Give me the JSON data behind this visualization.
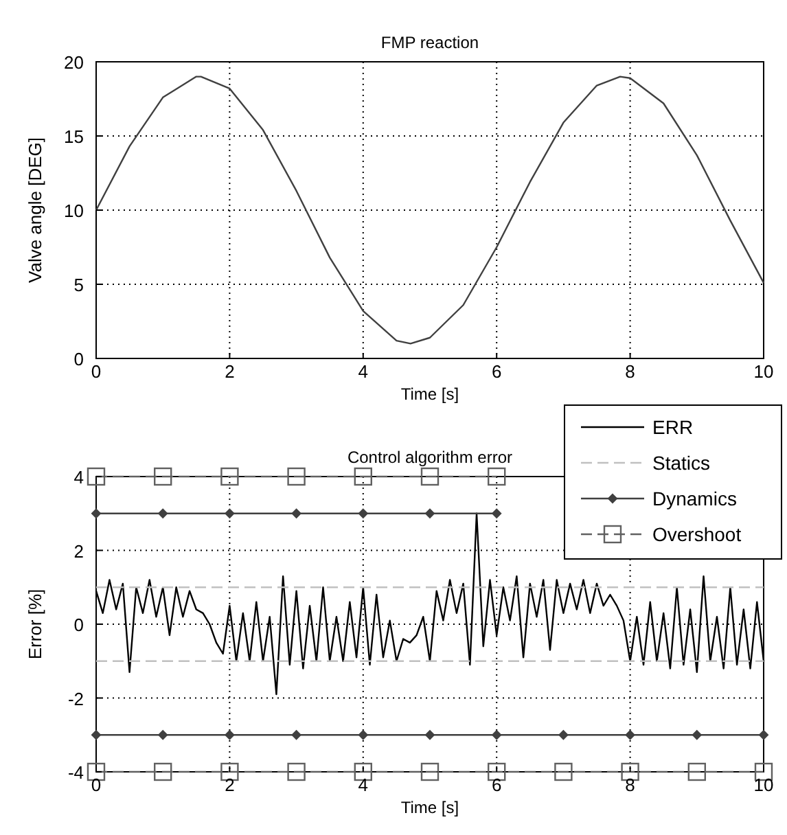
{
  "chart_data": [
    {
      "type": "line",
      "title": "FMP reaction",
      "xlabel": "Time [s]",
      "ylabel": "Valve angle [DEG]",
      "xlim": [
        0,
        10
      ],
      "ylim": [
        0,
        20
      ],
      "xticks": [
        0,
        2,
        4,
        6,
        8,
        10
      ],
      "yticks": [
        0,
        5,
        10,
        15,
        20
      ],
      "grid": true,
      "legend": false,
      "series": [
        {
          "color": "#404040",
          "x": [
            0,
            0.5,
            1,
            1.5,
            1.57,
            2,
            2.5,
            3,
            3.5,
            4,
            4.5,
            4.71,
            5,
            5.5,
            6,
            6.5,
            7,
            7.5,
            7.85,
            8,
            8.5,
            9,
            9.5,
            10
          ],
          "values": [
            10,
            14.3,
            17.6,
            19,
            19,
            18.2,
            15.4,
            11.3,
            6.8,
            3.2,
            1.2,
            1,
            1.4,
            3.6,
            7.5,
            11.9,
            15.9,
            18.4,
            19,
            18.9,
            17.2,
            13.7,
            9.3,
            5.1
          ]
        }
      ]
    },
    {
      "type": "line",
      "title": "Control algorithm error",
      "xlabel": "Time [s]",
      "ylabel": "Error [%]",
      "xlim": [
        0,
        10
      ],
      "ylim": [
        -4,
        4
      ],
      "xticks": [
        0,
        2,
        4,
        6,
        8,
        10
      ],
      "yticks": [
        -4,
        -2,
        0,
        2,
        4
      ],
      "grid": true,
      "legend": "top right",
      "series": [
        {
          "name": "ERR",
          "color": "#000000",
          "line_style": "solid",
          "marker": "none",
          "x": [
            0,
            0.1,
            0.2,
            0.3,
            0.4,
            0.5,
            0.6,
            0.7,
            0.8,
            0.9,
            1,
            1.1,
            1.2,
            1.3,
            1.4,
            1.5,
            1.6,
            1.7,
            1.8,
            1.9,
            2,
            2.1,
            2.2,
            2.3,
            2.4,
            2.5,
            2.6,
            2.7,
            2.8,
            2.9,
            3,
            3.1,
            3.2,
            3.3,
            3.4,
            3.5,
            3.6,
            3.7,
            3.8,
            3.9,
            4,
            4.1,
            4.2,
            4.3,
            4.4,
            4.5,
            4.6,
            4.7,
            4.8,
            4.9,
            5,
            5.1,
            5.2,
            5.3,
            5.4,
            5.5,
            5.6,
            5.7,
            5.8,
            5.9,
            6,
            6.1,
            6.2,
            6.3,
            6.4,
            6.5,
            6.6,
            6.7,
            6.8,
            6.9,
            7,
            7.1,
            7.2,
            7.3,
            7.4,
            7.5,
            7.6,
            7.7,
            7.8,
            7.9,
            8,
            8.1,
            8.2,
            8.3,
            8.4,
            8.5,
            8.6,
            8.7,
            8.8,
            8.9,
            9,
            9.1,
            9.2,
            9.3,
            9.4,
            9.5,
            9.6,
            9.7,
            9.8,
            9.9,
            10
          ],
          "values": [
            0.9,
            0.3,
            1.2,
            0.4,
            1.1,
            -1.3,
            1,
            0.3,
            1.2,
            0.2,
            1,
            -0.3,
            1,
            0.2,
            0.9,
            0.4,
            0.3,
            0,
            -0.5,
            -0.8,
            0.5,
            -1,
            0.3,
            -1,
            0.6,
            -1,
            0.2,
            -1.9,
            1.3,
            -1.1,
            0.9,
            -1.2,
            0.5,
            -1,
            1,
            -1,
            0.2,
            -1,
            0.6,
            -0.9,
            1,
            -1.1,
            0.8,
            -0.9,
            0.1,
            -1,
            -0.4,
            -0.5,
            -0.3,
            0.2,
            -1,
            0.9,
            0.1,
            1.2,
            0.3,
            1.1,
            -1.1,
            3,
            -0.6,
            1.2,
            -0.3,
            1,
            0.1,
            1.3,
            -0.9,
            1.1,
            0.2,
            1.2,
            -0.7,
            1.2,
            0.3,
            1.1,
            0.4,
            1.2,
            0.3,
            1.1,
            0.5,
            0.8,
            0.5,
            0.1,
            -1,
            0.2,
            -1.1,
            0.6,
            -1,
            0.3,
            -1.2,
            1,
            -1.1,
            0.4,
            -1.3,
            1.3,
            -1,
            0.2,
            -1.2,
            1,
            -1.1,
            0.4,
            -1.2,
            0.6,
            -1
          ]
        },
        {
          "name": "Statics",
          "color": "#c0c0c0",
          "line_style": "dashed",
          "marker": "none",
          "x": [
            0,
            10
          ],
          "values": [
            1,
            1
          ]
        },
        {
          "color": "#c0c0c0",
          "line_style": "dashed",
          "marker": "none",
          "x": [
            0,
            10
          ],
          "values": [
            -1,
            -1
          ]
        },
        {
          "name": "Dynamics",
          "color": "#404040",
          "line_style": "solid",
          "marker": "diamond",
          "x": [
            0,
            1,
            2,
            3,
            4,
            5,
            6
          ],
          "values": [
            3,
            3,
            3,
            3,
            3,
            3,
            3
          ]
        },
        {
          "color": "#404040",
          "line_style": "solid",
          "marker": "diamond",
          "x": [
            0,
            1,
            2,
            3,
            4,
            5,
            6,
            7,
            8,
            9,
            10
          ],
          "values": [
            -3,
            -3,
            -3,
            -3,
            -3,
            -3,
            -3,
            -3,
            -3,
            -3,
            -3
          ]
        },
        {
          "name": "Overshoot",
          "color": "#606060",
          "line_style": "dashed",
          "marker": "square",
          "x": [
            0,
            1,
            2,
            3,
            4,
            5,
            6
          ],
          "values": [
            4,
            4,
            4,
            4,
            4,
            4,
            4
          ]
        },
        {
          "color": "#606060",
          "line_style": "dashed",
          "marker": "square",
          "x": [
            0,
            1,
            2,
            3,
            4,
            5,
            6,
            7,
            8,
            9,
            10
          ],
          "values": [
            -4,
            -4,
            -4,
            -4,
            -4,
            -4,
            -4,
            -4,
            -4,
            -4,
            -4
          ]
        }
      ]
    }
  ]
}
